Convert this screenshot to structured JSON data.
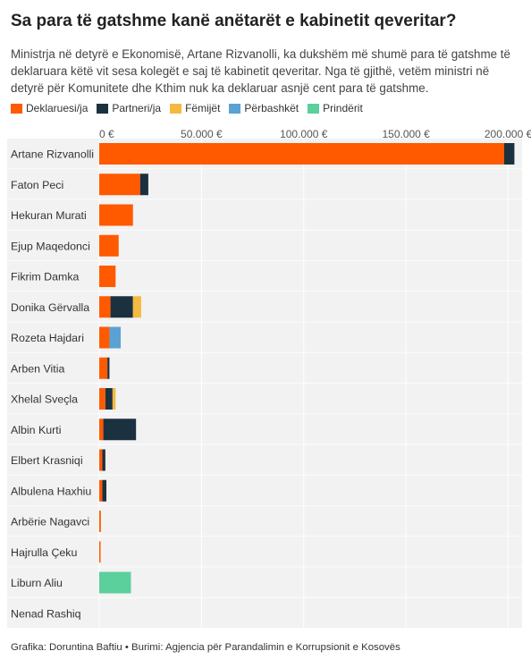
{
  "chart_data": {
    "type": "bar",
    "orientation": "horizontal",
    "stacked": true,
    "title": "Sa para të gatshme kanë anëtarët e kabinetit qeveritar?",
    "subtitle": "Ministrja në detyrë e Ekonomisë, Artane Rizvanolli, ka dukshëm më shumë para të gatshme të deklaruara këtë vit sesa kolegët e saj të kabinetit qeveritar. Nga të gjithë, vetëm ministri në detyrë për Komunitete dhe Kthim nuk ka deklaruar asnjë cent para të gatshme.",
    "xlim": [
      0,
      205000
    ],
    "x_ticks": [
      0,
      50000,
      100000,
      150000,
      200000
    ],
    "x_tick_labels": [
      "0 €",
      "50.000 €",
      "100.000 €",
      "150.000 €",
      "200.000 €"
    ],
    "legend_position": "top-left",
    "grid": true,
    "categories": [
      "Artane Rizvanolli",
      "Faton Peci",
      "Hekuran Murati",
      "Ejup Maqedonci",
      "Fikrim Damka",
      "Donika Gërvalla",
      "Rozeta Hajdari",
      "Arben Vitia",
      "Xhelal Sveçla",
      "Albin Kurti",
      "Elbert Krasniqi",
      "Albulena Haxhiu",
      "Arbërie Nagavci",
      "Hajrulla Çeku",
      "Liburn Aliu",
      "Nenad Rashiq"
    ],
    "series": [
      {
        "name": "Deklaruesi/ja",
        "color": "#ff5a00",
        "values": [
          198000,
          20000,
          16500,
          9500,
          8000,
          5500,
          5000,
          4000,
          3000,
          2000,
          1500,
          1500,
          800,
          400,
          0,
          0
        ]
      },
      {
        "name": "Partneri/ja",
        "color": "#1c3140",
        "values": [
          5000,
          4000,
          0,
          0,
          0,
          11000,
          0,
          1000,
          3500,
          16000,
          1500,
          2000,
          0,
          0,
          0,
          0
        ]
      },
      {
        "name": "Fëmijët",
        "color": "#f5b941",
        "values": [
          0,
          0,
          0,
          0,
          0,
          4000,
          0,
          0,
          1500,
          0,
          0,
          0,
          0,
          0,
          0,
          0
        ]
      },
      {
        "name": "Përbashkët",
        "color": "#5aa1d4",
        "values": [
          0,
          0,
          0,
          0,
          0,
          0,
          5500,
          0,
          0,
          0,
          0,
          0,
          0,
          0,
          0,
          0
        ]
      },
      {
        "name": "Prindërit",
        "color": "#5bcf9c",
        "values": [
          0,
          0,
          0,
          0,
          0,
          0,
          0,
          0,
          0,
          0,
          0,
          0,
          0,
          0,
          15500,
          0
        ]
      }
    ]
  },
  "footer": "Grafika: Doruntina Baftiu • Burimi: Agjencia për Parandalimin e Korrupsionit e Kosovës"
}
